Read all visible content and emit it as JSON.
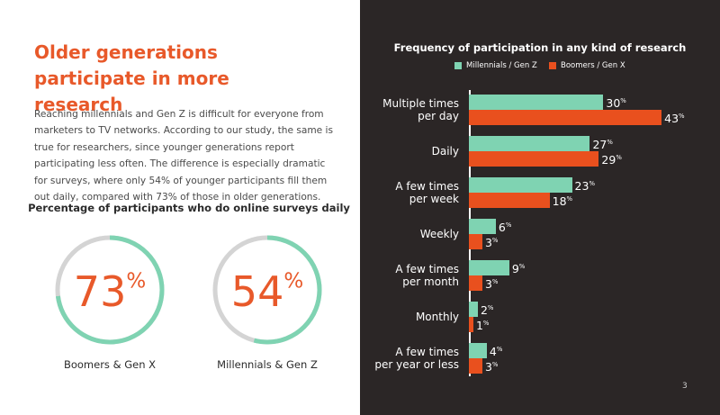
{
  "heading": "Older generations participate in more research",
  "body": "Reaching millennials and Gen Z is difficult for everyone from marketers to TV networks. According to our study, the same is true for researchers, since younger generations report participating less often. The difference is especially dramatic for surveys, where only 54% of younger participants fill them out daily, compared with 73% of those in older generations.",
  "page_number": "3",
  "chart_data": [
    {
      "type": "gauge",
      "title": "Percentage of participants who do online surveys daily",
      "categories": [
        "Boomers & Gen X",
        "Millennials & Gen Z"
      ],
      "values": [
        73,
        54
      ],
      "value_labels": [
        "73%",
        "54%"
      ],
      "ylim": [
        0,
        100
      ],
      "color": "#7fd3b2",
      "track_color": "#d4d4d4",
      "label_color": "#e8592a"
    },
    {
      "type": "hbar",
      "title": "Frequency of participation in any kind of research",
      "categories": [
        "Multiple times\nper day",
        "Daily",
        "A few times\nper week",
        "Weekly",
        "A few times\nper month",
        "Monthly",
        "A few times\nper year or less"
      ],
      "series": [
        {
          "name": "Millennials / Gen Z",
          "color": "#7fd3b2",
          "values": [
            30,
            27,
            23,
            6,
            9,
            2,
            4
          ],
          "value_labels": [
            "30%",
            "27%",
            "23%",
            "6%",
            "9%",
            "2%",
            "4%"
          ]
        },
        {
          "name": "Boomers / Gen X",
          "color": "#e9501e",
          "values": [
            43,
            29,
            18,
            3,
            3,
            1,
            3
          ],
          "value_labels": [
            "43%",
            "29%",
            "18%",
            "3%",
            "3%",
            "1%",
            "3%"
          ]
        }
      ],
      "xlim": [
        0,
        50
      ]
    }
  ]
}
